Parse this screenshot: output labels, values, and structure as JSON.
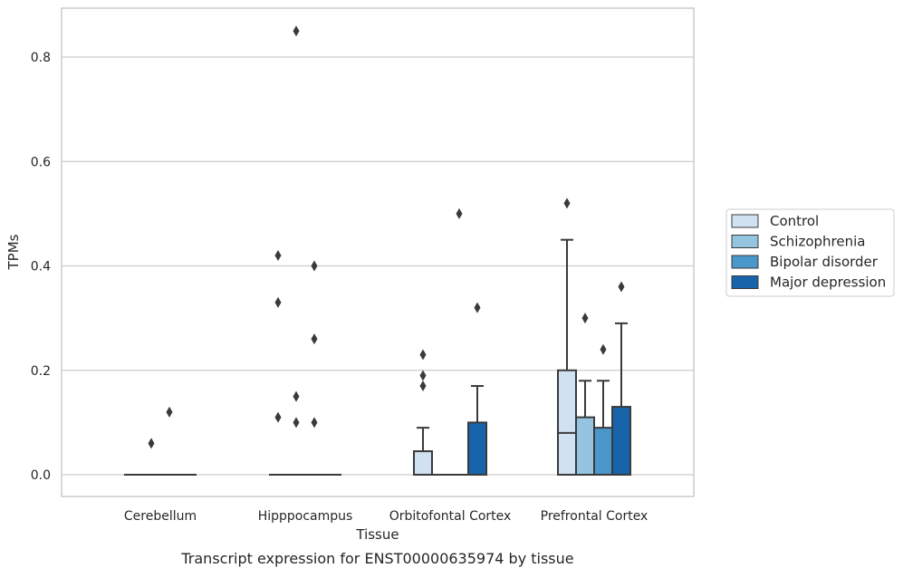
{
  "chart_data": {
    "type": "box",
    "caption": "Transcript expression for ENST00000635974 by tissue",
    "xlabel": "Tissue",
    "ylabel": "TPMs",
    "ylim": [
      -0.04,
      0.89
    ],
    "yticks": [
      "0.0",
      "0.2",
      "0.4",
      "0.6",
      "0.8"
    ],
    "ytick_values": [
      0,
      0.2,
      0.4,
      0.6,
      0.8
    ],
    "grid": "horizontal",
    "legend_position": "right",
    "categories": [
      "Cerebellum",
      "Hipppocampus",
      "Orbitofontal Cortex",
      "Prefrontal Cortex"
    ],
    "series": [
      {
        "name": "Control",
        "color": "#d0e1f2",
        "boxes": [
          {
            "q1": 0,
            "median": 0,
            "q3": 0,
            "whislo": 0,
            "whishi": 0,
            "fliers": []
          },
          {
            "q1": 0,
            "median": 0,
            "q3": 0,
            "whislo": 0,
            "whishi": 0,
            "fliers": [
              0.42,
              0.33,
              0.11
            ]
          },
          {
            "q1": 0,
            "median": 0,
            "q3": 0.045,
            "whislo": 0,
            "whishi": 0.09,
            "fliers": [
              0.23,
              0.19,
              0.17
            ]
          },
          {
            "q1": 0,
            "median": 0.08,
            "q3": 0.2,
            "whislo": 0,
            "whishi": 0.45,
            "fliers": [
              0.52
            ]
          }
        ]
      },
      {
        "name": "Schizophrenia",
        "color": "#94c4df",
        "boxes": [
          {
            "q1": 0,
            "median": 0,
            "q3": 0,
            "whislo": 0,
            "whishi": 0,
            "fliers": [
              0.06
            ]
          },
          {
            "q1": 0,
            "median": 0,
            "q3": 0,
            "whislo": 0,
            "whishi": 0,
            "fliers": [
              0.85,
              0.15,
              0.1
            ]
          },
          {
            "q1": 0,
            "median": 0,
            "q3": 0,
            "whislo": 0,
            "whishi": 0,
            "fliers": []
          },
          {
            "q1": 0,
            "median": 0,
            "q3": 0.11,
            "whislo": 0,
            "whishi": 0.18,
            "fliers": [
              0.3
            ]
          }
        ]
      },
      {
        "name": "Bipolar disorder",
        "color": "#4a98c9",
        "boxes": [
          {
            "q1": 0,
            "median": 0,
            "q3": 0,
            "whislo": 0,
            "whishi": 0,
            "fliers": [
              0.12
            ]
          },
          {
            "q1": 0,
            "median": 0,
            "q3": 0,
            "whislo": 0,
            "whishi": 0,
            "fliers": [
              0.4,
              0.26,
              0.1
            ]
          },
          {
            "q1": 0,
            "median": 0,
            "q3": 0,
            "whislo": 0,
            "whishi": 0,
            "fliers": [
              0.5
            ]
          },
          {
            "q1": 0,
            "median": 0,
            "q3": 0.09,
            "whislo": 0,
            "whishi": 0.18,
            "fliers": [
              0.24
            ]
          }
        ]
      },
      {
        "name": "Major depression",
        "color": "#1764ab",
        "boxes": [
          {
            "q1": 0,
            "median": 0,
            "q3": 0,
            "whislo": 0,
            "whishi": 0,
            "fliers": []
          },
          {
            "q1": 0,
            "median": 0,
            "q3": 0,
            "whislo": 0,
            "whishi": 0,
            "fliers": []
          },
          {
            "q1": 0,
            "median": 0,
            "q3": 0.1,
            "whislo": 0,
            "whishi": 0.17,
            "fliers": [
              0.32
            ]
          },
          {
            "q1": 0,
            "median": 0,
            "q3": 0.13,
            "whislo": 0,
            "whishi": 0.29,
            "fliers": [
              0.36
            ]
          }
        ]
      }
    ]
  },
  "colors": {
    "grid": "#cccccc",
    "frame": "#cccccc",
    "line": "#3a3a3a",
    "text": "#262626"
  }
}
